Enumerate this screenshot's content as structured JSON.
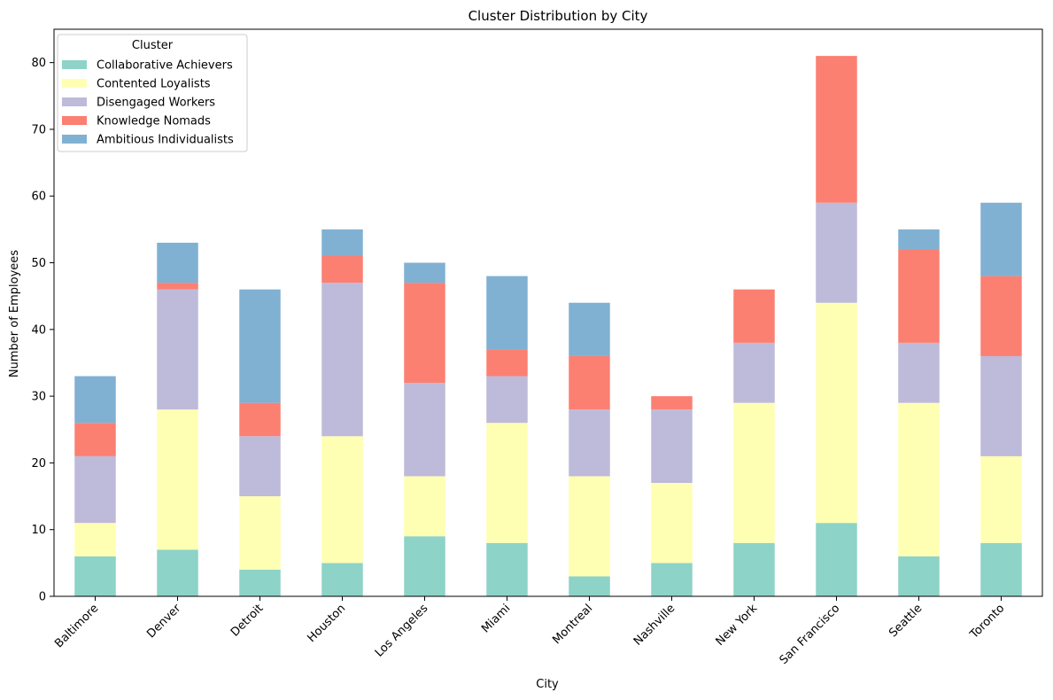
{
  "chart_data": {
    "type": "bar",
    "stacked": true,
    "title": "Cluster Distribution by City",
    "xlabel": "City",
    "ylabel": "Number of Employees",
    "ylim": [
      0,
      85
    ],
    "yticks": [
      0,
      10,
      20,
      30,
      40,
      50,
      60,
      70,
      80
    ],
    "grid": false,
    "legend_title": "Cluster",
    "legend_placement": "top-left",
    "categories": [
      "Baltimore",
      "Denver",
      "Detroit",
      "Houston",
      "Los Angeles",
      "Miami",
      "Montreal",
      "Nashville",
      "New York",
      "San Francisco",
      "Seattle",
      "Toronto"
    ],
    "series": [
      {
        "name": "Collaborative Achievers",
        "color": "#8dd3c7",
        "values": [
          6,
          7,
          4,
          5,
          9,
          8,
          3,
          5,
          8,
          11,
          6,
          8
        ]
      },
      {
        "name": "Contented Loyalists",
        "color": "#ffffb3",
        "values": [
          5,
          21,
          11,
          19,
          9,
          18,
          15,
          12,
          21,
          33,
          23,
          13
        ]
      },
      {
        "name": "Disengaged Workers",
        "color": "#bebada",
        "values": [
          10,
          18,
          9,
          23,
          14,
          7,
          10,
          11,
          9,
          15,
          9,
          15
        ]
      },
      {
        "name": "Knowledge Nomads",
        "color": "#fb8072",
        "values": [
          5,
          1,
          5,
          4,
          15,
          4,
          8,
          2,
          8,
          22,
          14,
          12
        ]
      },
      {
        "name": "Ambitious Individualists",
        "color": "#80b1d3",
        "values": [
          7,
          6,
          17,
          4,
          3,
          11,
          8,
          0,
          0,
          0,
          3,
          11
        ]
      }
    ]
  }
}
